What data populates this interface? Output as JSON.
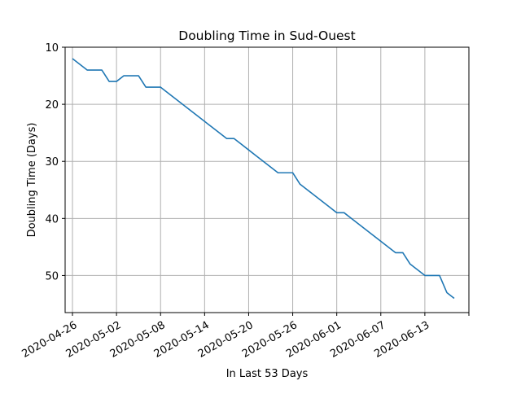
{
  "chart_data": {
    "type": "line",
    "title": "Doubling Time in  Sud-Ouest",
    "xlabel": "In Last 53 Days",
    "ylabel": "Doubling Time (Days)",
    "y_inverted": true,
    "ylim": [
      10,
      56.5
    ],
    "xlim": [
      "2020-04-25",
      "2020-06-19"
    ],
    "grid": true,
    "colors": {
      "line": "#1f77b4",
      "grid": "#b0b0b0"
    },
    "x_ticks": [
      "2020-04-26",
      "2020-05-02",
      "2020-05-08",
      "2020-05-14",
      "2020-05-20",
      "2020-05-26",
      "2020-06-01",
      "2020-06-07",
      "2020-06-13",
      ""
    ],
    "y_ticks": [
      10,
      20,
      30,
      40,
      50
    ],
    "series": [
      {
        "x": [
          "2020-04-26",
          "2020-04-27",
          "2020-04-28",
          "2020-04-29",
          "2020-04-30",
          "2020-05-01",
          "2020-05-02",
          "2020-05-03",
          "2020-05-04",
          "2020-05-05",
          "2020-05-06",
          "2020-05-07",
          "2020-05-08",
          "2020-05-09",
          "2020-05-10",
          "2020-05-11",
          "2020-05-12",
          "2020-05-13",
          "2020-05-14",
          "2020-05-15",
          "2020-05-16",
          "2020-05-17",
          "2020-05-18",
          "2020-05-19",
          "2020-05-20",
          "2020-05-21",
          "2020-05-22",
          "2020-05-23",
          "2020-05-24",
          "2020-05-25",
          "2020-05-26",
          "2020-05-27",
          "2020-05-28",
          "2020-05-29",
          "2020-05-30",
          "2020-05-31",
          "2020-06-01",
          "2020-06-02",
          "2020-06-03",
          "2020-06-04",
          "2020-06-05",
          "2020-06-06",
          "2020-06-07",
          "2020-06-08",
          "2020-06-09",
          "2020-06-10",
          "2020-06-11",
          "2020-06-12",
          "2020-06-13",
          "2020-06-14",
          "2020-06-15",
          "2020-06-16",
          "2020-06-17"
        ],
        "values": [
          12,
          13,
          14,
          14,
          14,
          16,
          16,
          15,
          15,
          15,
          17,
          17,
          17,
          18,
          19,
          20,
          21,
          22,
          23,
          24,
          25,
          26,
          26,
          27,
          28,
          29,
          30,
          31,
          32,
          32,
          32,
          34,
          35,
          36,
          37,
          38,
          39,
          39,
          40,
          41,
          42,
          43,
          44,
          45,
          46,
          46,
          48,
          49,
          50,
          50,
          50,
          53,
          54
        ]
      }
    ]
  }
}
